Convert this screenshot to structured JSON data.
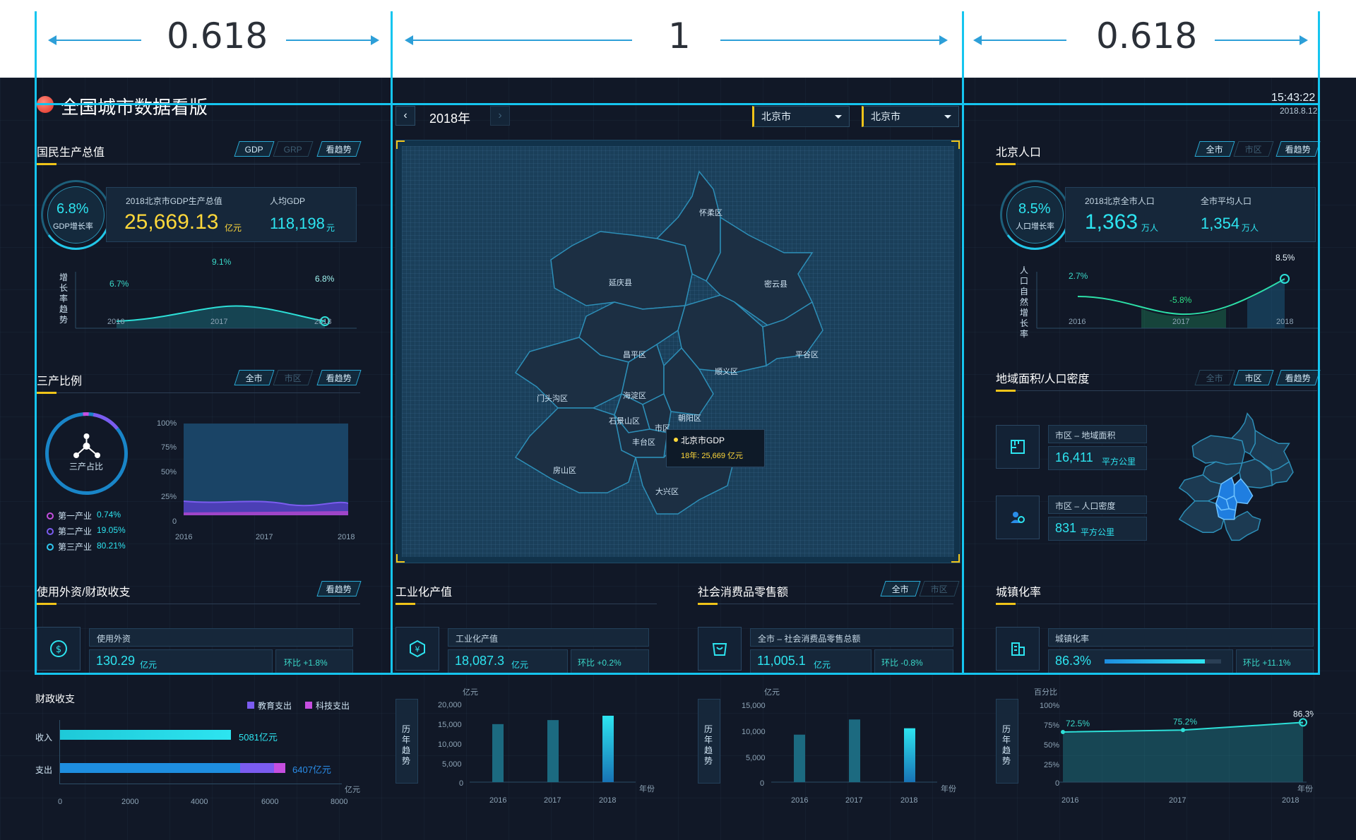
{
  "ratios": {
    "left": "0.618",
    "middle": "1",
    "right": "0.618"
  },
  "header": {
    "title": "全国城市数据看版",
    "time": "15:43:22",
    "date": "2018.8.12"
  },
  "gdp": {
    "title": "国民生产总值",
    "chips": [
      "GDP",
      "GRP",
      "看趋势"
    ],
    "rate": "6.8%",
    "rate_label": "GDP增长率",
    "total_label": "2018北京市GDP生产总值",
    "total": "25,669.13",
    "total_unit": "亿元",
    "per_label": "人均GDP",
    "per": "118,198",
    "per_unit": "元",
    "trend_label": "增长率趋势",
    "points": [
      {
        "year": "2016",
        "value": "6.7%"
      },
      {
        "year": "2017",
        "value": "9.1%"
      },
      {
        "year": "2018",
        "value": "6.8%"
      }
    ]
  },
  "ratio3": {
    "title": "三产比例",
    "chips": [
      "全市",
      "市区",
      "看趋势"
    ],
    "ring_label": "三产占比",
    "legend": [
      {
        "name": "第一产业",
        "value": "0.74%",
        "color": "#c64ee0"
      },
      {
        "name": "第二产业",
        "value": "19.05%",
        "color": "#7b5cf0"
      },
      {
        "name": "第三产业",
        "value": "80.21%",
        "color": "#2ec8f0"
      }
    ],
    "y_ticks": [
      "100%",
      "75%",
      "50%",
      "25%",
      "0"
    ],
    "x_ticks": [
      "2016",
      "2017",
      "2018"
    ]
  },
  "foreign": {
    "title": "使用外资/财政收支",
    "chip": "看趋势",
    "label": "使用外资",
    "value": "130.29",
    "unit": "亿元",
    "change": "环比 +1.8%"
  },
  "fiscal": {
    "title": "财政收支",
    "legend": [
      "教育支出",
      "科技支出"
    ],
    "rows": [
      {
        "name": "收入",
        "value": "5081亿元"
      },
      {
        "name": "支出",
        "value": "6407亿元"
      }
    ],
    "x_unit": "亿元",
    "x_ticks": [
      "0",
      "2000",
      "4000",
      "6000",
      "8000"
    ]
  },
  "map": {
    "year": "2018年",
    "select1": "北京市",
    "select2": "北京市",
    "districts": [
      "怀柔区",
      "延庆县",
      "密云县",
      "昌平区",
      "顺义区",
      "平谷区",
      "门头沟区",
      "海淀区",
      "朝阳区",
      "石景山区",
      "市区",
      "丰台区",
      "房山区",
      "大兴区"
    ],
    "tooltip_title": "北京市GDP",
    "tooltip_value": "18年: 25,669 亿元"
  },
  "industry": {
    "title": "工业化产值",
    "label": "工业化产值",
    "value": "18,087.3",
    "unit": "亿元",
    "change": "环比 +0.2%",
    "trend_label": "历年趋势",
    "y_unit": "亿元",
    "x_unit": "年份",
    "y_ticks": [
      "20,000",
      "15,000",
      "10,000",
      "5,000",
      "0"
    ],
    "chart_data": {
      "type": "bar",
      "categories": [
        "2016",
        "2017",
        "2018"
      ],
      "values": [
        15800,
        16900,
        18087.3
      ],
      "ylim": [
        0,
        20000
      ]
    }
  },
  "retail": {
    "title": "社会消费品零售额",
    "chips": [
      "全市",
      "市区"
    ],
    "label": "全市 – 社会消费品零售总额",
    "value": "11,005.1",
    "unit": "亿元",
    "change": "环比 -0.8%",
    "trend_label": "历年趋势",
    "y_unit": "亿元",
    "x_unit": "年份",
    "y_ticks": [
      "15,000",
      "10,000",
      "5,000",
      "0"
    ],
    "chart_data": {
      "type": "bar",
      "categories": [
        "2016",
        "2017",
        "2018"
      ],
      "values": [
        9700,
        12800,
        11005.1
      ],
      "ylim": [
        0,
        15000
      ]
    }
  },
  "population": {
    "title": "北京人口",
    "chips": [
      "全市",
      "市区",
      "看趋势"
    ],
    "rate": "8.5%",
    "rate_label": "人口增长率",
    "total_label": "2018北京全市人口",
    "total": "1,363",
    "total_unit": "万人",
    "avg_label": "全市平均人口",
    "avg": "1,354",
    "avg_unit": "万人",
    "trend_label": "人口自然增长率",
    "points": [
      {
        "year": "2016",
        "value": "2.7%"
      },
      {
        "year": "2017",
        "value": "-5.8%"
      },
      {
        "year": "2018",
        "value": "8.5%"
      }
    ]
  },
  "area": {
    "title": "地域面积/人口密度",
    "chips": [
      "全市",
      "市区",
      "看趋势"
    ],
    "area_label": "市区 – 地域面积",
    "area_value": "16,411",
    "area_unit": "平方公里",
    "density_label": "市区 – 人口密度",
    "density_value": "831",
    "density_unit": "平方公里"
  },
  "urban": {
    "title": "城镇化率",
    "label": "城镇化率",
    "value": "86.3%",
    "change": "环比 +11.1%",
    "progress": 0.863,
    "trend_label": "历年趋势",
    "y_unit": "百分比",
    "x_unit": "年份",
    "y_ticks": [
      "100%",
      "75%",
      "50%",
      "25%",
      "0"
    ],
    "chart_data": {
      "type": "area",
      "categories": [
        "2016",
        "2017",
        "2018"
      ],
      "values": [
        72.5,
        75.2,
        86.3
      ],
      "labels": [
        "72.5%",
        "75.2%",
        "86.3%"
      ],
      "ylim": [
        0,
        100
      ]
    }
  }
}
